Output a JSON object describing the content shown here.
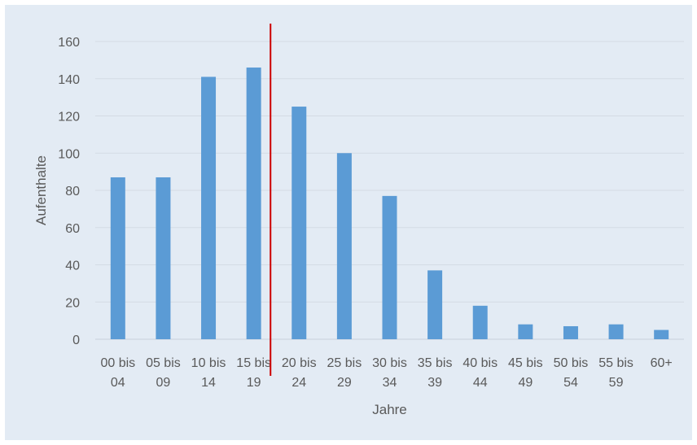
{
  "chart_data": {
    "type": "bar",
    "title": "",
    "xlabel": "Jahre",
    "ylabel": "Aufenthalte",
    "ylim": [
      0,
      160
    ],
    "yticks": [
      0,
      20,
      40,
      60,
      80,
      100,
      120,
      140,
      160
    ],
    "grid": true,
    "legend": "none",
    "categories": [
      [
        "00 bis",
        "04"
      ],
      [
        "05 bis",
        "09"
      ],
      [
        "10 bis",
        "14"
      ],
      [
        "15 bis",
        "19"
      ],
      [
        "20 bis",
        "24"
      ],
      [
        "25 bis",
        "29"
      ],
      [
        "30 bis",
        "34"
      ],
      [
        "35 bis",
        "39"
      ],
      [
        "40 bis",
        "44"
      ],
      [
        "45 bis",
        "49"
      ],
      [
        "50 bis",
        "54"
      ],
      [
        "55 bis",
        "59"
      ],
      [
        "60+",
        ""
      ]
    ],
    "values": [
      87,
      87,
      141,
      146,
      125,
      100,
      77,
      37,
      18,
      8,
      7,
      8,
      5
    ],
    "reference_line": {
      "between_categories": [
        "15 bis 19",
        "20 bis 24"
      ],
      "color": "#cc0000"
    }
  },
  "colors": {
    "bar": "#5b9bd5",
    "background": "#e3ebf4",
    "gridline": "#d4dbe4",
    "text": "#595959"
  }
}
